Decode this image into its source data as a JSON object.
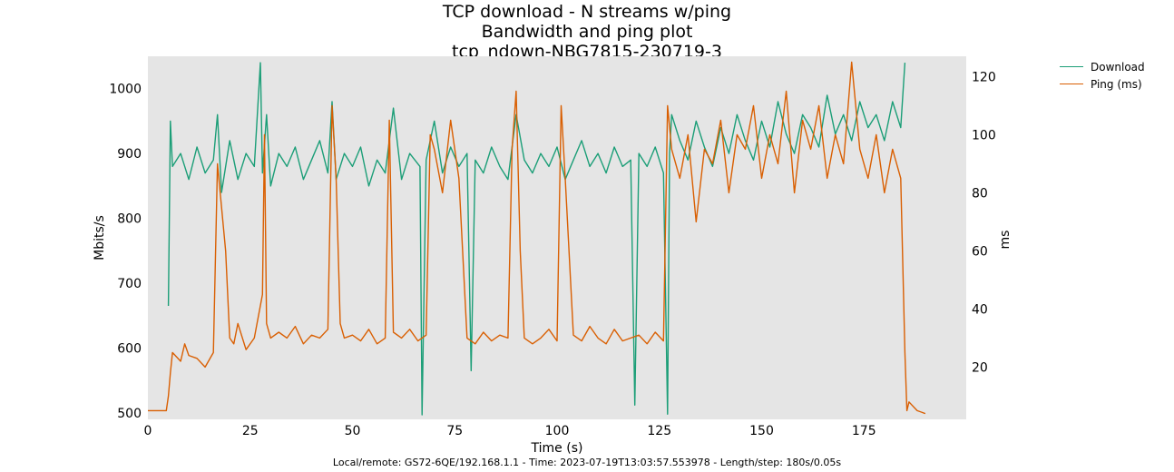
{
  "chart_data": {
    "type": "line",
    "title": "TCP download - N streams w/ping",
    "subtitle": "Bandwidth and ping plot",
    "run_name": "tcp_ndown-NBG7815-230719-3",
    "xlabel": "Time (s)",
    "ylabel": "Mbits/s",
    "y2label": "ms",
    "xlim": [
      0,
      200
    ],
    "ylim": [
      490,
      1050
    ],
    "y2lim": [
      2,
      127
    ],
    "x_ticks": [
      0,
      25,
      50,
      75,
      100,
      125,
      150,
      175
    ],
    "y_ticks": [
      500,
      600,
      700,
      800,
      900,
      1000
    ],
    "y2_ticks": [
      20,
      40,
      60,
      80,
      100,
      120
    ],
    "legend_position": "outside-top-right",
    "grid": false,
    "background": "#e5e5e5",
    "series": [
      {
        "name": "Download",
        "axis": "left",
        "color": "#1b9e77",
        "x": [
          0,
          5,
          5.5,
          6,
          8,
          10,
          12,
          14,
          16,
          17,
          18,
          20,
          22,
          24,
          26,
          27.5,
          28,
          29,
          30,
          32,
          34,
          36,
          38,
          40,
          42,
          44,
          45,
          46,
          48,
          50,
          52,
          54,
          56,
          58,
          60,
          62,
          64,
          66.5,
          67,
          68,
          70,
          72,
          74,
          76,
          78,
          79,
          80,
          82,
          84,
          86,
          88,
          90,
          92,
          94,
          96,
          98,
          100,
          102,
          104,
          106,
          108,
          110,
          112,
          114,
          116,
          118,
          119,
          120,
          122,
          124,
          126,
          127,
          127.5,
          128,
          130,
          132,
          134,
          136,
          138,
          140,
          142,
          144,
          146,
          148,
          150,
          152,
          154,
          156,
          158,
          160,
          162,
          164,
          166,
          168,
          170,
          172,
          174,
          176,
          178,
          180,
          182,
          184,
          185,
          185.5
        ],
        "y": [
          null,
          665,
          950,
          880,
          900,
          860,
          910,
          870,
          890,
          960,
          840,
          920,
          860,
          900,
          880,
          1040,
          870,
          960,
          850,
          900,
          880,
          910,
          860,
          890,
          920,
          870,
          980,
          860,
          900,
          880,
          910,
          850,
          890,
          870,
          970,
          860,
          900,
          880,
          497,
          890,
          950,
          870,
          910,
          880,
          900,
          565,
          890,
          870,
          910,
          880,
          860,
          960,
          890,
          870,
          900,
          880,
          910,
          860,
          890,
          920,
          880,
          900,
          870,
          910,
          880,
          890,
          512,
          900,
          880,
          910,
          870,
          498,
          900,
          960,
          920,
          890,
          950,
          910,
          880,
          940,
          900,
          960,
          920,
          890,
          950,
          910,
          980,
          930,
          900,
          960,
          940,
          910,
          990,
          930,
          960,
          920,
          980,
          940,
          960,
          920,
          980,
          940,
          1040,
          null
        ]
      },
      {
        "name": "Ping (ms)",
        "axis": "right",
        "color": "#d95f02",
        "x": [
          0,
          4.5,
          5,
          5.5,
          6,
          8,
          9,
          10,
          12,
          14,
          16,
          17,
          18,
          19,
          20,
          21,
          22,
          24,
          26,
          28,
          28.5,
          29,
          30,
          32,
          34,
          36,
          38,
          40,
          42,
          44,
          45,
          46,
          47,
          48,
          50,
          52,
          54,
          56,
          58,
          59,
          60,
          62,
          64,
          66,
          68,
          69,
          70,
          72,
          74,
          76,
          78,
          80,
          82,
          84,
          86,
          88,
          89,
          90,
          91,
          92,
          94,
          96,
          98,
          100,
          101,
          102,
          104,
          106,
          108,
          110,
          112,
          114,
          116,
          118,
          120,
          122,
          124,
          126,
          127,
          128,
          130,
          132,
          134,
          136,
          138,
          140,
          142,
          144,
          146,
          148,
          150,
          152,
          154,
          156,
          158,
          160,
          162,
          164,
          166,
          168,
          170,
          172,
          174,
          176,
          178,
          180,
          182,
          184,
          185,
          185.5,
          186,
          188,
          190
        ],
        "y": [
          5,
          5,
          10,
          18,
          25,
          22,
          28,
          24,
          23,
          20,
          25,
          90,
          75,
          60,
          30,
          28,
          35,
          26,
          30,
          45,
          100,
          35,
          30,
          32,
          30,
          34,
          28,
          31,
          30,
          33,
          110,
          85,
          35,
          30,
          31,
          29,
          33,
          28,
          30,
          105,
          32,
          30,
          33,
          29,
          31,
          100,
          95,
          80,
          105,
          85,
          30,
          28,
          32,
          29,
          31,
          30,
          95,
          115,
          60,
          30,
          28,
          30,
          33,
          29,
          110,
          85,
          31,
          29,
          34,
          30,
          28,
          33,
          29,
          30,
          31,
          28,
          32,
          29,
          110,
          95,
          85,
          100,
          70,
          95,
          90,
          105,
          80,
          100,
          95,
          110,
          85,
          100,
          90,
          115,
          80,
          105,
          95,
          110,
          85,
          100,
          90,
          125,
          95,
          85,
          100,
          80,
          95,
          85,
          25,
          5,
          8,
          5,
          4
        ]
      }
    ]
  },
  "footer": "Local/remote: GS72-6QE/192.168.1.1 - Time: 2023-07-19T13:03:57.553978 - Length/step: 180s/0.05s"
}
